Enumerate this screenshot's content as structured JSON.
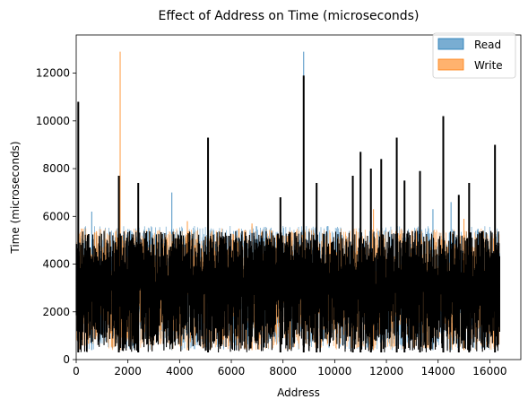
{
  "chart_data": {
    "type": "bar",
    "title": "Effect of Address on Time (microseconds)",
    "xlabel": "Address",
    "ylabel": "Time (microseconds)",
    "xlim": [
      0,
      17200
    ],
    "ylim": [
      0,
      13600
    ],
    "x_ticks": [
      0,
      2000,
      4000,
      6000,
      8000,
      10000,
      12000,
      14000,
      16000
    ],
    "y_ticks": [
      0,
      2000,
      4000,
      6000,
      8000,
      10000,
      12000
    ],
    "x_tick_labels": [
      "0",
      "2000",
      "4000",
      "6000",
      "8000",
      "10000",
      "12000",
      "14000",
      "16000"
    ],
    "y_tick_labels": [
      "0",
      "2000",
      "4000",
      "6000",
      "8000",
      "10000",
      "12000"
    ],
    "address_range": [
      0,
      16383
    ],
    "grid": false,
    "legend_position": "top-right",
    "series": [
      {
        "name": "Read",
        "color": "#1f77b4",
        "typical_range": [
          400,
          5600
        ],
        "peaks": [
          {
            "x": 80,
            "y": 10800
          },
          {
            "x": 600,
            "y": 6200
          },
          {
            "x": 1650,
            "y": 7700
          },
          {
            "x": 2400,
            "y": 7400
          },
          {
            "x": 3700,
            "y": 7000
          },
          {
            "x": 5100,
            "y": 9300
          },
          {
            "x": 7900,
            "y": 6800
          },
          {
            "x": 8800,
            "y": 12900
          },
          {
            "x": 9300,
            "y": 7400
          },
          {
            "x": 10700,
            "y": 7700
          },
          {
            "x": 11000,
            "y": 8700
          },
          {
            "x": 11400,
            "y": 8000
          },
          {
            "x": 11800,
            "y": 8400
          },
          {
            "x": 12400,
            "y": 9300
          },
          {
            "x": 12700,
            "y": 7500
          },
          {
            "x": 13300,
            "y": 7900
          },
          {
            "x": 13800,
            "y": 6300
          },
          {
            "x": 14200,
            "y": 10200
          },
          {
            "x": 14500,
            "y": 6600
          },
          {
            "x": 14800,
            "y": 6900
          },
          {
            "x": 15200,
            "y": 7400
          },
          {
            "x": 16200,
            "y": 9000
          }
        ]
      },
      {
        "name": "Write",
        "color": "#ff7f0e",
        "typical_range": [
          400,
          5500
        ],
        "peaks": [
          {
            "x": 1700,
            "y": 12900
          },
          {
            "x": 4300,
            "y": 5800
          },
          {
            "x": 6800,
            "y": 5700
          },
          {
            "x": 11500,
            "y": 6300
          },
          {
            "x": 15000,
            "y": 5900
          }
        ]
      },
      {
        "name": "",
        "color": "#000000",
        "typical_range": [
          300,
          5400
        ],
        "peaks": [
          {
            "x": 80,
            "y": 10800
          },
          {
            "x": 1650,
            "y": 7700
          },
          {
            "x": 2400,
            "y": 7400
          },
          {
            "x": 5100,
            "y": 9300
          },
          {
            "x": 7900,
            "y": 6800
          },
          {
            "x": 8800,
            "y": 11900
          },
          {
            "x": 9300,
            "y": 7400
          },
          {
            "x": 10700,
            "y": 7700
          },
          {
            "x": 11000,
            "y": 8700
          },
          {
            "x": 11400,
            "y": 8000
          },
          {
            "x": 11800,
            "y": 8400
          },
          {
            "x": 12400,
            "y": 9300
          },
          {
            "x": 12700,
            "y": 7500
          },
          {
            "x": 13300,
            "y": 7900
          },
          {
            "x": 14200,
            "y": 10200
          },
          {
            "x": 14800,
            "y": 6900
          },
          {
            "x": 15200,
            "y": 7400
          },
          {
            "x": 16200,
            "y": 9000
          }
        ]
      }
    ],
    "legend": [
      {
        "label": "Read",
        "color": "#1f77b4"
      },
      {
        "label": "Write",
        "color": "#ff7f0e"
      }
    ]
  }
}
